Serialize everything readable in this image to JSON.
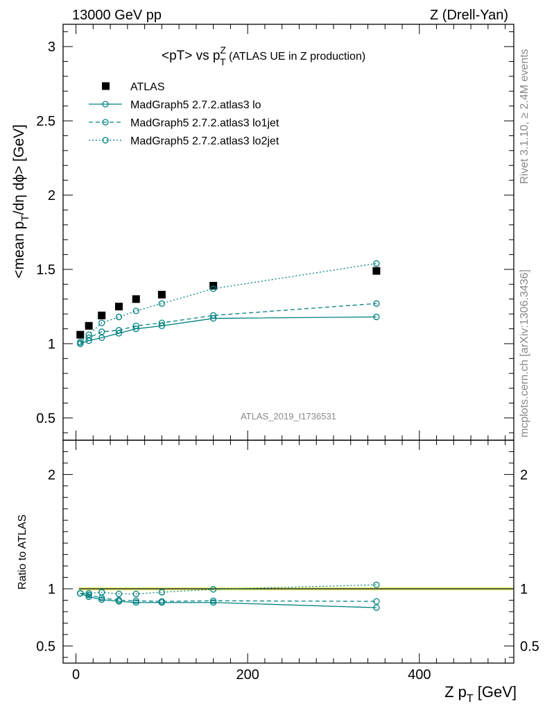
{
  "header": {
    "left": "13000 GeV pp",
    "right": "Z (Drell-Yan)"
  },
  "side_text": {
    "rivet": "Rivet 3.1.10, ≥ 2.4M events",
    "mcplots": "mcplots.cern.ch [arXiv:1306.3436]"
  },
  "title": {
    "main": "<pT> vs p",
    "sup": "Z",
    "sub": "T",
    "extra": " (ATLAS UE in Z production)"
  },
  "analysis_id": "ATLAS_2019_I1736531",
  "y_label": {
    "part1": "<mean p",
    "sub": "T",
    "part2": "/dη dϕ> [GeV]"
  },
  "ratio_label": "Ratio to ATLAS",
  "x_label": {
    "main": "Z p",
    "sub": "T",
    "unit": " [GeV]"
  },
  "colors": {
    "mc": "#008080",
    "data": "#000000",
    "band": "#e8f58a"
  },
  "chart_data": {
    "type": "line",
    "x": [
      5,
      15,
      30,
      50,
      70,
      100,
      160,
      350
    ],
    "xlim": [
      -15,
      510
    ],
    "ylim": [
      0.35,
      3.15
    ],
    "ratio_ylim": [
      0.35,
      2.3
    ],
    "x_ticks": [
      0,
      200,
      400
    ],
    "y_ticks": [
      0.5,
      1,
      1.5,
      2,
      2.5,
      3
    ],
    "y_tick_labels": [
      "0.5",
      "1",
      "1.5",
      "2",
      "2.5",
      "3"
    ],
    "ratio_ticks": [
      0.5,
      1,
      2
    ],
    "ratio_tick_labels": [
      "0.5",
      "1",
      "2"
    ],
    "legend_position": "top-left",
    "series": [
      {
        "name": "ATLAS",
        "style": "data",
        "values": [
          1.06,
          1.12,
          1.19,
          1.25,
          1.3,
          1.33,
          1.39,
          1.49
        ]
      },
      {
        "name": "MadGraph5 2.7.2.atlas3 lo",
        "style": "solid",
        "values": [
          1.0,
          1.02,
          1.04,
          1.07,
          1.1,
          1.12,
          1.17,
          1.18
        ],
        "ratio": [
          0.96,
          0.93,
          0.905,
          0.89,
          0.88,
          0.88,
          0.88,
          0.835
        ]
      },
      {
        "name": "MadGraph5 2.7.2.atlas3 lo1jet",
        "style": "dashed",
        "values": [
          1.0,
          1.04,
          1.08,
          1.09,
          1.12,
          1.14,
          1.19,
          1.27
        ],
        "ratio": [
          0.96,
          0.945,
          0.92,
          0.9,
          0.895,
          0.89,
          0.895,
          0.89
        ]
      },
      {
        "name": "MadGraph5 2.7.2.atlas3 lo2jet",
        "style": "dotted",
        "values": [
          1.01,
          1.06,
          1.14,
          1.18,
          1.22,
          1.27,
          1.37,
          1.54
        ],
        "ratio": [
          0.96,
          0.96,
          0.97,
          0.955,
          0.955,
          0.97,
          0.995,
          1.035
        ]
      }
    ]
  }
}
